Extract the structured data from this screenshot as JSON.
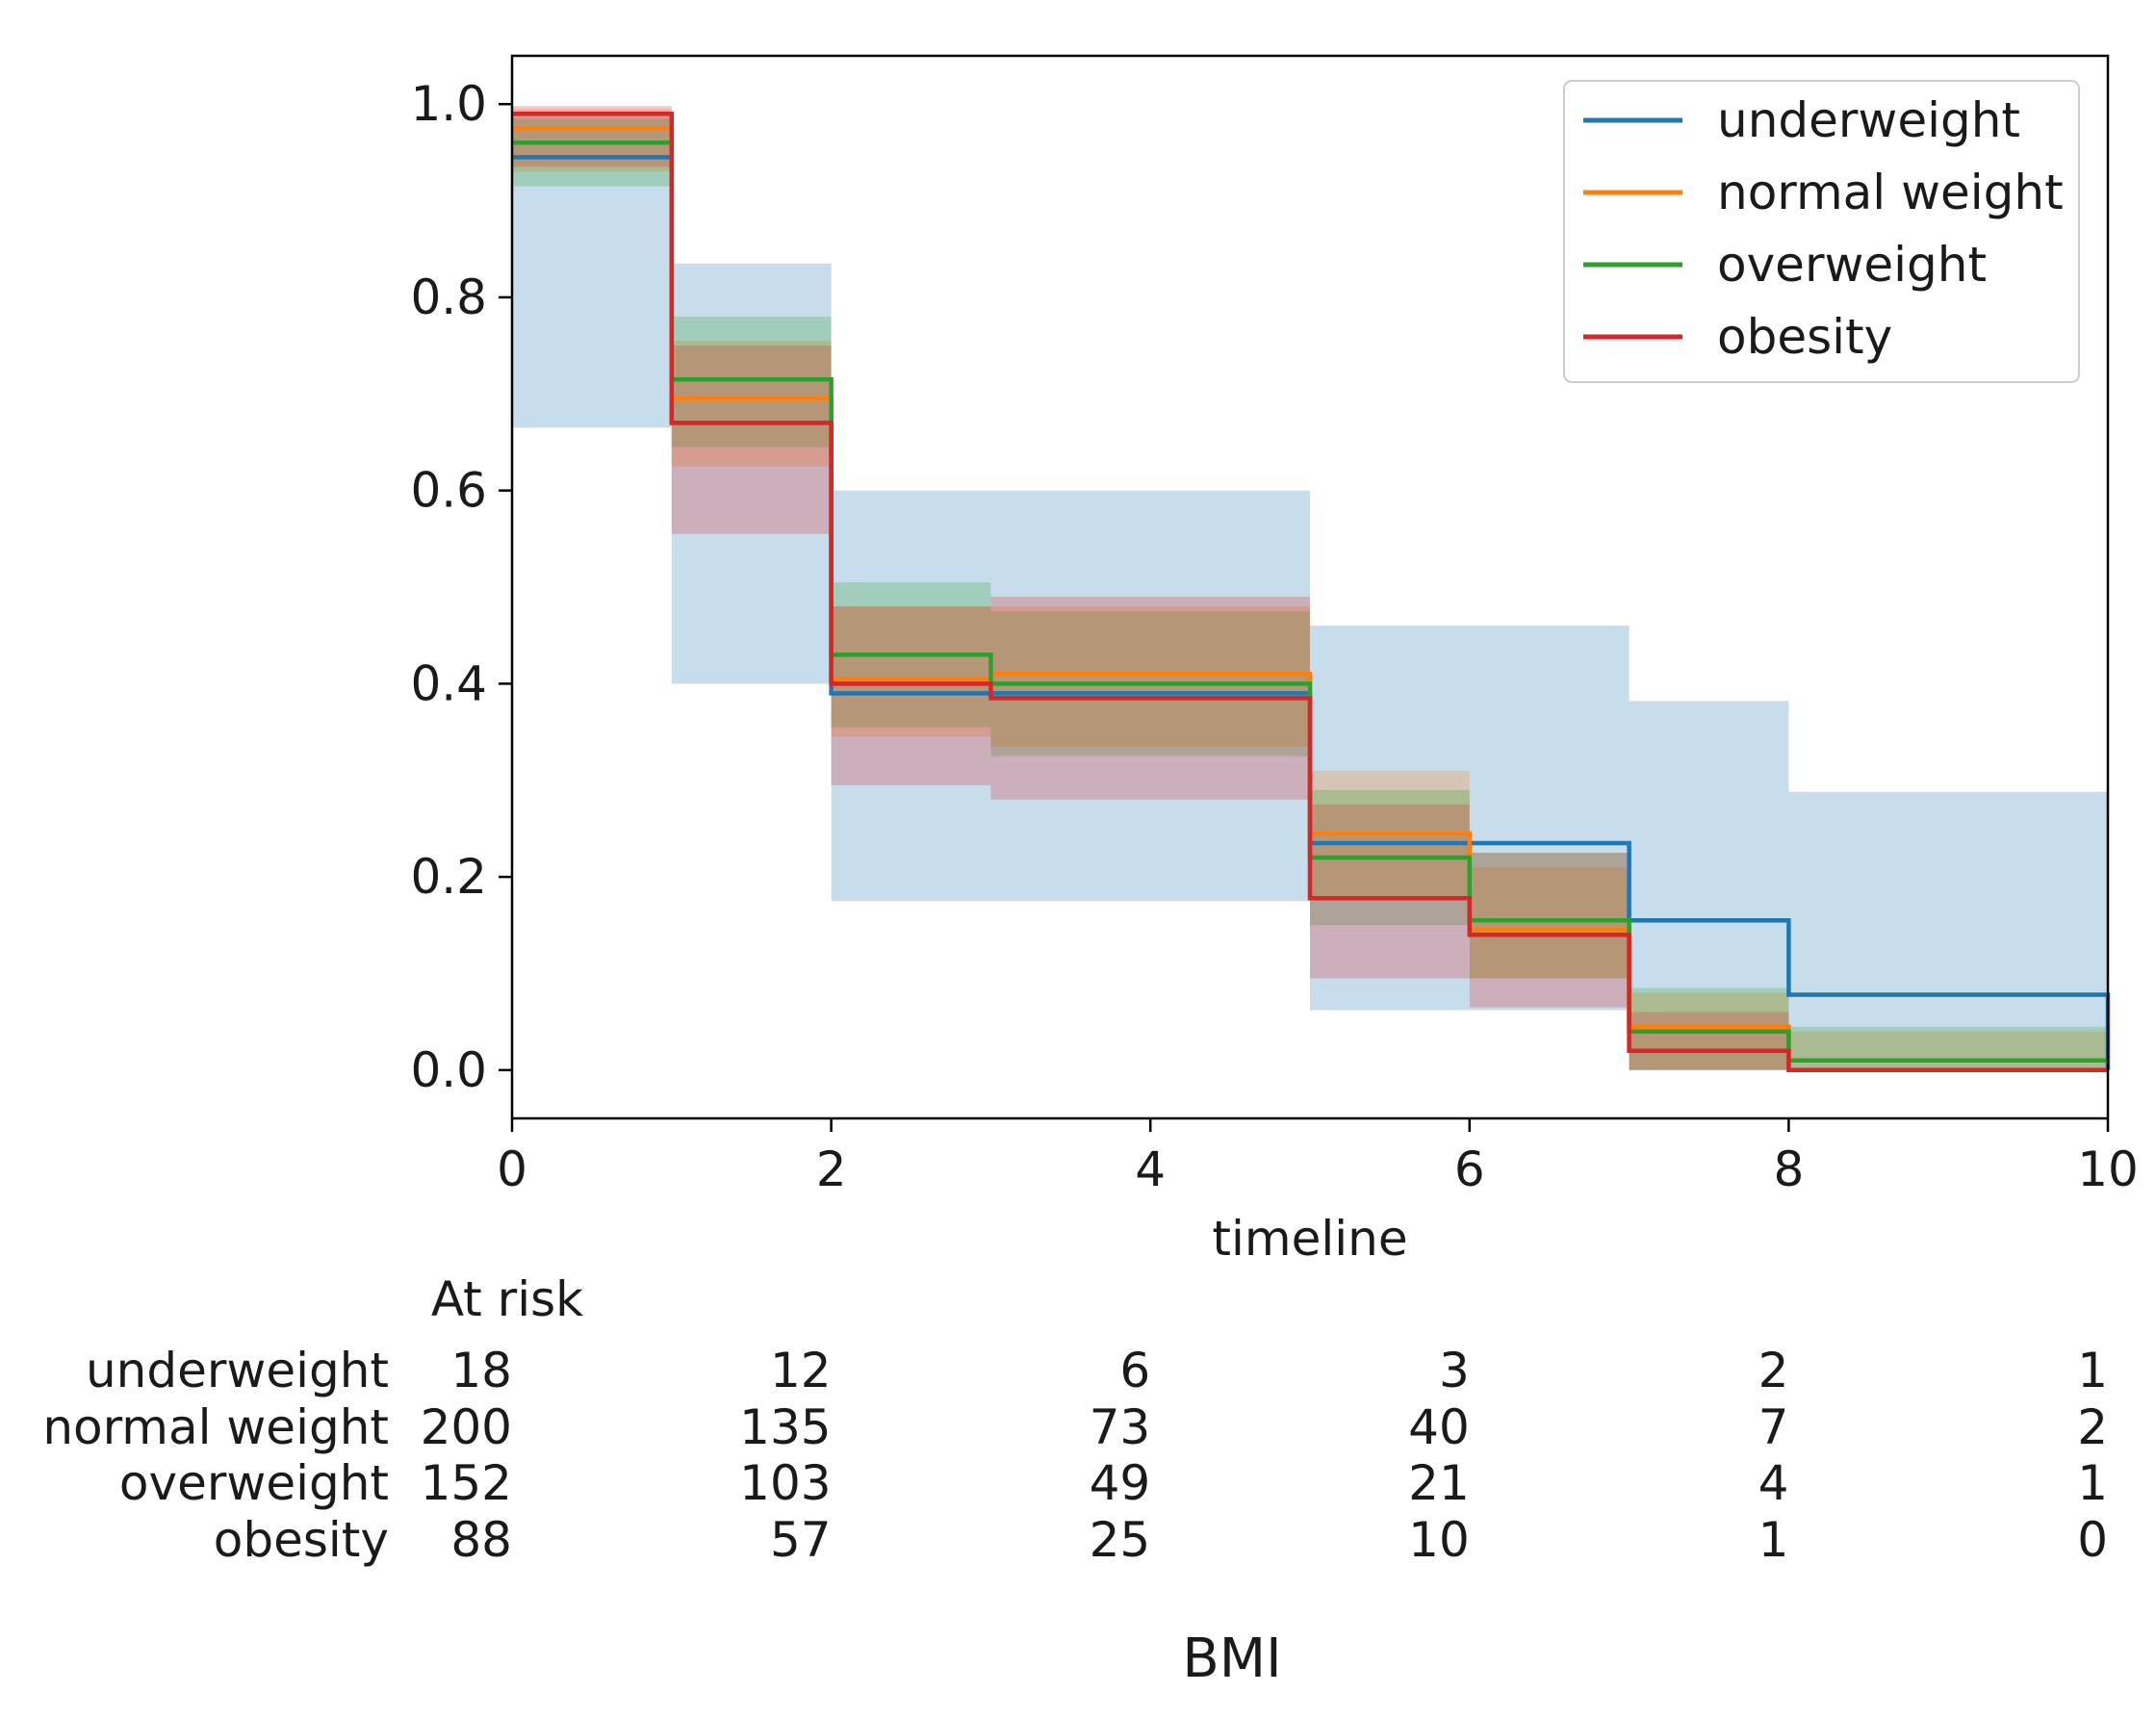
{
  "chart_data": {
    "type": "line",
    "subtype": "kaplan-meier-step",
    "title": "BMI",
    "xlabel": "timeline",
    "ylabel": "",
    "xlim": [
      0,
      10
    ],
    "ylim": [
      -0.05,
      1.05
    ],
    "x_ticks": [
      0,
      2,
      4,
      6,
      8,
      10
    ],
    "x_tick_labels": [
      "0",
      "2",
      "4",
      "6",
      "8",
      "10"
    ],
    "y_ticks": [
      0.0,
      0.2,
      0.4,
      0.6,
      0.8,
      1.0
    ],
    "y_tick_labels": [
      "0.0",
      "0.2",
      "0.4",
      "0.6",
      "0.8",
      "1.0"
    ],
    "grid": false,
    "legend_position": "top-right",
    "series": [
      {
        "name": "underweight",
        "color": "#1f77b4",
        "times": [
          0,
          1,
          2,
          3,
          5,
          6,
          7,
          8,
          10
        ],
        "survival": [
          0.945,
          0.67,
          0.39,
          0.39,
          0.235,
          0.235,
          0.155,
          0.078,
          0.0
        ],
        "ci_lower": [
          0.665,
          0.4,
          0.175,
          0.175,
          0.062,
          0.062,
          0.0,
          0.0,
          0.0
        ],
        "ci_upper": [
          0.99,
          0.835,
          0.6,
          0.6,
          0.46,
          0.46,
          0.382,
          0.288,
          0.288
        ]
      },
      {
        "name": "normal weight",
        "color": "#ff7f0e",
        "times": [
          0,
          1,
          2,
          3,
          5,
          6,
          7,
          8,
          10
        ],
        "survival": [
          0.975,
          0.695,
          0.405,
          0.41,
          0.245,
          0.145,
          0.045,
          0.01,
          0.01
        ],
        "ci_lower": [
          0.93,
          0.625,
          0.345,
          0.335,
          0.18,
          0.095,
          0.0,
          0.0,
          0.0
        ],
        "ci_upper": [
          0.995,
          0.755,
          0.48,
          0.48,
          0.31,
          0.21,
          0.08,
          0.04,
          0.04
        ]
      },
      {
        "name": "overweight",
        "color": "#2ca02c",
        "times": [
          0,
          1,
          2,
          3,
          5,
          6,
          7,
          8,
          10
        ],
        "survival": [
          0.96,
          0.715,
          0.43,
          0.4,
          0.22,
          0.155,
          0.04,
          0.01,
          0.01
        ],
        "ci_lower": [
          0.915,
          0.645,
          0.355,
          0.325,
          0.15,
          0.095,
          0.0,
          0.0,
          0.0
        ],
        "ci_upper": [
          0.985,
          0.78,
          0.505,
          0.475,
          0.29,
          0.225,
          0.085,
          0.045,
          0.045
        ]
      },
      {
        "name": "obesity",
        "color": "#d62728",
        "times": [
          0,
          1,
          2,
          3,
          5,
          6,
          7,
          8,
          10
        ],
        "survival": [
          0.99,
          0.67,
          0.4,
          0.385,
          0.178,
          0.14,
          0.02,
          0.0,
          0.0
        ],
        "ci_lower": [
          0.935,
          0.555,
          0.295,
          0.28,
          0.095,
          0.065,
          0.0,
          0.0,
          0.0
        ],
        "ci_upper": [
          0.998,
          0.75,
          0.48,
          0.49,
          0.275,
          0.225,
          0.06,
          0.0,
          0.0
        ]
      }
    ],
    "at_risk": {
      "title": "At risk",
      "times": [
        0,
        2,
        4,
        6,
        8,
        10
      ],
      "rows": [
        {
          "label": "underweight",
          "counts": [
            "18",
            "12",
            "6",
            "3",
            "2",
            "1"
          ]
        },
        {
          "label": "normal weight",
          "counts": [
            "200",
            "135",
            "73",
            "40",
            "7",
            "2"
          ]
        },
        {
          "label": "overweight",
          "counts": [
            "152",
            "103",
            "49",
            "21",
            "4",
            "1"
          ]
        },
        {
          "label": "obesity",
          "counts": [
            "88",
            "57",
            "25",
            "10",
            "1",
            "0"
          ]
        }
      ]
    }
  }
}
